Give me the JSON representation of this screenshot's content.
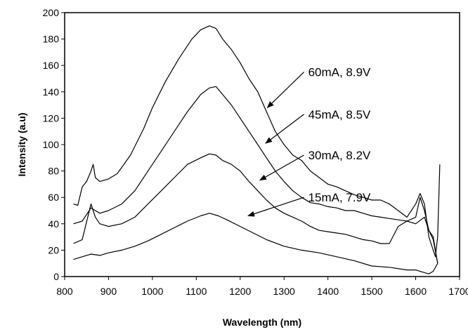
{
  "chart_data": {
    "type": "line",
    "xlabel": "Wavelength (nm)",
    "ylabel": "Intensity (a.u)",
    "xlim": [
      800,
      1700
    ],
    "ylim": [
      0,
      200
    ],
    "xticks": [
      800,
      900,
      1000,
      1100,
      1200,
      1300,
      1400,
      1500,
      1600,
      1700
    ],
    "yticks": [
      0,
      20,
      40,
      60,
      80,
      100,
      120,
      140,
      160,
      180,
      200
    ],
    "grid": false,
    "legend": "annotations with arrows",
    "series": [
      {
        "label": "60mA, 8.9V",
        "color": "#000000",
        "x": [
          820,
          830,
          840,
          850,
          860,
          865,
          870,
          880,
          900,
          920,
          950,
          980,
          1000,
          1030,
          1060,
          1090,
          1110,
          1130,
          1145,
          1160,
          1180,
          1200,
          1220,
          1240,
          1260,
          1280,
          1300,
          1320,
          1340,
          1360,
          1380,
          1400,
          1420,
          1440,
          1460,
          1480,
          1500,
          1520,
          1540,
          1560,
          1580,
          1600,
          1610,
          1620,
          1630,
          1640,
          1645,
          1650,
          1655
        ],
        "y": [
          55,
          54,
          68,
          72,
          80,
          85,
          75,
          72,
          74,
          78,
          92,
          112,
          128,
          148,
          165,
          180,
          187,
          190,
          188,
          180,
          172,
          162,
          150,
          140,
          125,
          110,
          100,
          92,
          88,
          80,
          75,
          70,
          68,
          65,
          62,
          60,
          58,
          58,
          55,
          50,
          45,
          55,
          63,
          55,
          30,
          20,
          15,
          30,
          85
        ]
      },
      {
        "label": "45mA, 8.5V",
        "color": "#000000",
        "x": [
          820,
          840,
          860,
          870,
          880,
          900,
          930,
          960,
          990,
          1020,
          1050,
          1080,
          1110,
          1130,
          1145,
          1160,
          1180,
          1200,
          1220,
          1240,
          1260,
          1280,
          1300,
          1320,
          1340,
          1360,
          1380,
          1400,
          1420,
          1440,
          1460,
          1480,
          1500,
          1520,
          1540,
          1560,
          1580,
          1600,
          1610,
          1620,
          1630,
          1640,
          1650
        ],
        "y": [
          40,
          42,
          52,
          50,
          48,
          50,
          55,
          65,
          80,
          95,
          110,
          125,
          138,
          143,
          144,
          138,
          130,
          120,
          110,
          100,
          90,
          80,
          72,
          65,
          60,
          56,
          55,
          53,
          52,
          50,
          50,
          48,
          46,
          45,
          44,
          43,
          42,
          45,
          60,
          50,
          35,
          30,
          10
        ]
      },
      {
        "label": "30mA, 8.2V",
        "color": "#000000",
        "x": [
          820,
          840,
          860,
          870,
          880,
          900,
          930,
          960,
          990,
          1020,
          1050,
          1080,
          1110,
          1130,
          1145,
          1160,
          1180,
          1200,
          1220,
          1240,
          1260,
          1280,
          1300,
          1320,
          1340,
          1360,
          1380,
          1400,
          1420,
          1440,
          1460,
          1480,
          1500,
          1520,
          1540,
          1560,
          1580,
          1600,
          1620,
          1630,
          1640,
          1650
        ],
        "y": [
          25,
          28,
          55,
          45,
          40,
          38,
          40,
          45,
          55,
          65,
          75,
          85,
          90,
          93,
          92,
          88,
          85,
          80,
          72,
          65,
          58,
          52,
          48,
          45,
          42,
          38,
          35,
          34,
          33,
          32,
          30,
          28,
          27,
          25,
          25,
          38,
          42,
          40,
          45,
          35,
          28,
          10
        ]
      },
      {
        "label": "15mA, 7.9V",
        "color": "#000000",
        "x": [
          820,
          840,
          860,
          880,
          900,
          930,
          960,
          990,
          1020,
          1050,
          1080,
          1110,
          1130,
          1150,
          1170,
          1200,
          1230,
          1260,
          1300,
          1340,
          1380,
          1420,
          1460,
          1500,
          1540,
          1580,
          1600,
          1620,
          1630,
          1640,
          1650
        ],
        "y": [
          13,
          15,
          17,
          16,
          18,
          20,
          23,
          27,
          32,
          37,
          42,
          46,
          48,
          46,
          43,
          38,
          33,
          28,
          23,
          20,
          18,
          15,
          12,
          8,
          7,
          5,
          5,
          3,
          2,
          4,
          10
        ]
      }
    ],
    "annotations": [
      {
        "text": "60mA, 8.9V",
        "text_pos": [
          1355,
          155
        ],
        "arrow_to": [
          1262,
          128
        ]
      },
      {
        "text": "45mA, 8.5V",
        "text_pos": [
          1355,
          123
        ],
        "arrow_to": [
          1258,
          101
        ]
      },
      {
        "text": "30mA, 8.2V",
        "text_pos": [
          1355,
          92
        ],
        "arrow_to": [
          1245,
          73
        ]
      },
      {
        "text": "15mA, 7.9V",
        "text_pos": [
          1355,
          60
        ],
        "arrow_to": [
          1218,
          46
        ]
      }
    ]
  }
}
